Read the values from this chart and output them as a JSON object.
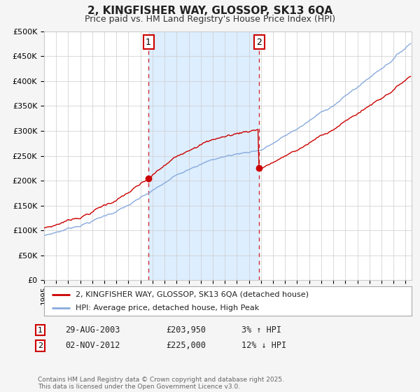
{
  "title": "2, KINGFISHER WAY, GLOSSOP, SK13 6QA",
  "subtitle": "Price paid vs. HM Land Registry's House Price Index (HPI)",
  "legend_entries": [
    "2, KINGFISHER WAY, GLOSSOP, SK13 6QA (detached house)",
    "HPI: Average price, detached house, High Peak"
  ],
  "property_color": "#cc0000",
  "hpi_color": "#88aadd",
  "background_color": "#f5f5f5",
  "plot_bg_color": "#ffffff",
  "shaded_region_color": "#ddeeff",
  "marker1_date_num": 2003.66,
  "marker2_date_num": 2012.84,
  "marker1_value": 203950,
  "marker2_value": 225000,
  "footer": "Contains HM Land Registry data © Crown copyright and database right 2025.\nThis data is licensed under the Open Government Licence v3.0.",
  "ylim": [
    0,
    500000
  ],
  "xlim_start": 1995.0,
  "xlim_end": 2025.5,
  "yticks": [
    0,
    50000,
    100000,
    150000,
    200000,
    250000,
    300000,
    350000,
    400000,
    450000,
    500000
  ],
  "ytick_labels": [
    "£0",
    "£50K",
    "£100K",
    "£150K",
    "£200K",
    "£250K",
    "£300K",
    "£350K",
    "£400K",
    "£450K",
    "£500K"
  ]
}
